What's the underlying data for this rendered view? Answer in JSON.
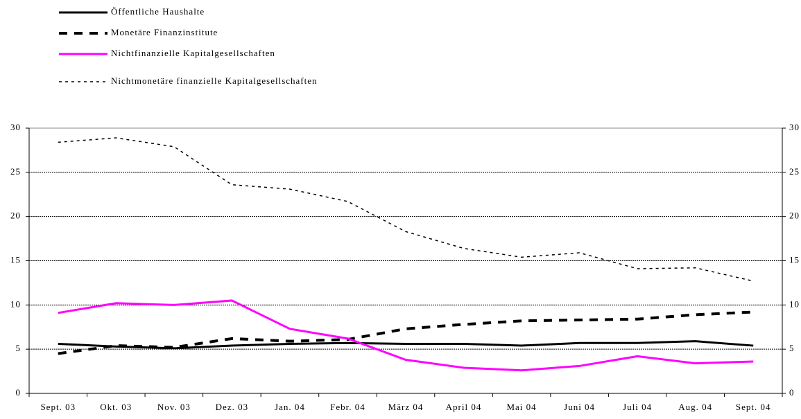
{
  "chart_data": {
    "type": "line",
    "categories": [
      "Sept. 03",
      "Okt. 03",
      "Nov. 03",
      "Dez. 03",
      "Jan. 04",
      "Febr. 04",
      "März 04",
      "April 04",
      "Mai 04",
      "Juni 04",
      "Juli 04",
      "Aug. 04",
      "Sept. 04"
    ],
    "series": [
      {
        "name": "Öffentliche Haushalte",
        "color": "#000000",
        "dash": "solid",
        "values": [
          5.6,
          5.3,
          5.1,
          5.4,
          5.6,
          5.7,
          5.6,
          5.6,
          5.4,
          5.7,
          5.7,
          5.9,
          5.4
        ]
      },
      {
        "name": "Monetäre Finanzinstitute",
        "color": "#000000",
        "dash": "dashed",
        "values": [
          4.5,
          5.4,
          5.2,
          6.2,
          5.9,
          6.1,
          7.3,
          7.8,
          8.2,
          8.3,
          8.4,
          8.9,
          9.2
        ]
      },
      {
        "name": "Nichtfinanzielle Kapitalgesellschaften",
        "color": "#ff00ff",
        "dash": "solid",
        "values": [
          9.1,
          10.2,
          10.0,
          10.5,
          7.3,
          6.2,
          3.8,
          2.9,
          2.6,
          3.1,
          4.2,
          3.4,
          3.6
        ]
      },
      {
        "name": "Nichtmonetäre finanzielle Kapitalgesellschaften",
        "color": "#000000",
        "dash": "dotted",
        "values": [
          28.4,
          28.9,
          27.9,
          23.6,
          23.1,
          21.7,
          18.3,
          16.4,
          15.4,
          15.9,
          14.1,
          14.2,
          12.7
        ]
      }
    ],
    "ylim": [
      0,
      30
    ],
    "yticks": [
      0,
      5,
      10,
      15,
      20,
      25,
      30
    ],
    "y2lim": [
      0,
      30
    ],
    "y2ticks": [
      0,
      5,
      10,
      15,
      20,
      25,
      30
    ],
    "grid": true,
    "legend": "top-left"
  }
}
